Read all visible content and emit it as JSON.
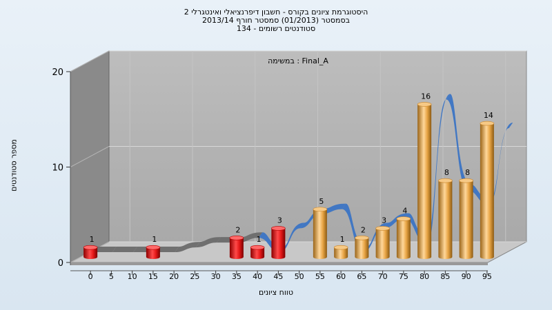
{
  "title_lines": [
    "היסטוגרמת ציונים בקורס - חשבון דיפרנציאלי ואינטגרלי 2",
    "בסמסטר  (01/2013)  סמסטר חורף  2013/14",
    "סטודנטים רשומים - 134"
  ],
  "chart_data": {
    "type": "bar",
    "subtitle": "במשימה : Final_A",
    "xlabel": "טווח ציונים",
    "ylabel": "מספר סטודנטים",
    "x_ticks": [
      "0",
      "5",
      "10",
      "15",
      "20",
      "25",
      "30",
      "35",
      "40",
      "45",
      "50",
      "55",
      "60",
      "65",
      "70",
      "75",
      "80",
      "85",
      "90",
      "95"
    ],
    "y_ticks": [
      "0",
      "10",
      "20"
    ],
    "ylim": [
      0,
      20
    ],
    "bars": [
      {
        "bin": "0",
        "value": 1,
        "color": "red"
      },
      {
        "bin": "15",
        "value": 1,
        "color": "red"
      },
      {
        "bin": "35",
        "value": 2,
        "color": "red"
      },
      {
        "bin": "40",
        "value": 1,
        "color": "red"
      },
      {
        "bin": "45",
        "value": 3,
        "color": "red"
      },
      {
        "bin": "55",
        "value": 5,
        "color": "orange"
      },
      {
        "bin": "60",
        "value": 1,
        "color": "orange"
      },
      {
        "bin": "65",
        "value": 2,
        "color": "orange"
      },
      {
        "bin": "70",
        "value": 3,
        "color": "orange"
      },
      {
        "bin": "75",
        "value": 4,
        "color": "orange"
      },
      {
        "bin": "80",
        "value": 16,
        "color": "orange"
      },
      {
        "bin": "85",
        "value": 8,
        "color": "orange"
      },
      {
        "bin": "90",
        "value": 8,
        "color": "orange"
      },
      {
        "bin": "95",
        "value": 14,
        "color": "orange"
      }
    ],
    "ribbon": {
      "x": [
        0,
        5,
        10,
        15,
        20,
        25,
        30,
        35,
        40,
        45,
        50,
        55,
        60,
        65,
        70,
        75,
        80,
        85,
        90,
        95,
        100
      ],
      "values": [
        0,
        0,
        0,
        0,
        0,
        0.5,
        1,
        1,
        1.5,
        0,
        2.5,
        4,
        4.5,
        0,
        2.5,
        3.5,
        1,
        16,
        6.5,
        5,
        13
      ]
    },
    "colors": {
      "red": "#e21a1a",
      "orange": "#e8a545",
      "ribbon_front": "#3b74c4",
      "ribbon_back": "#6b6b6b",
      "plot_back": "#b0b0b0",
      "plot_side": "#8a8a8a",
      "floor": "#c8c8c8"
    }
  }
}
